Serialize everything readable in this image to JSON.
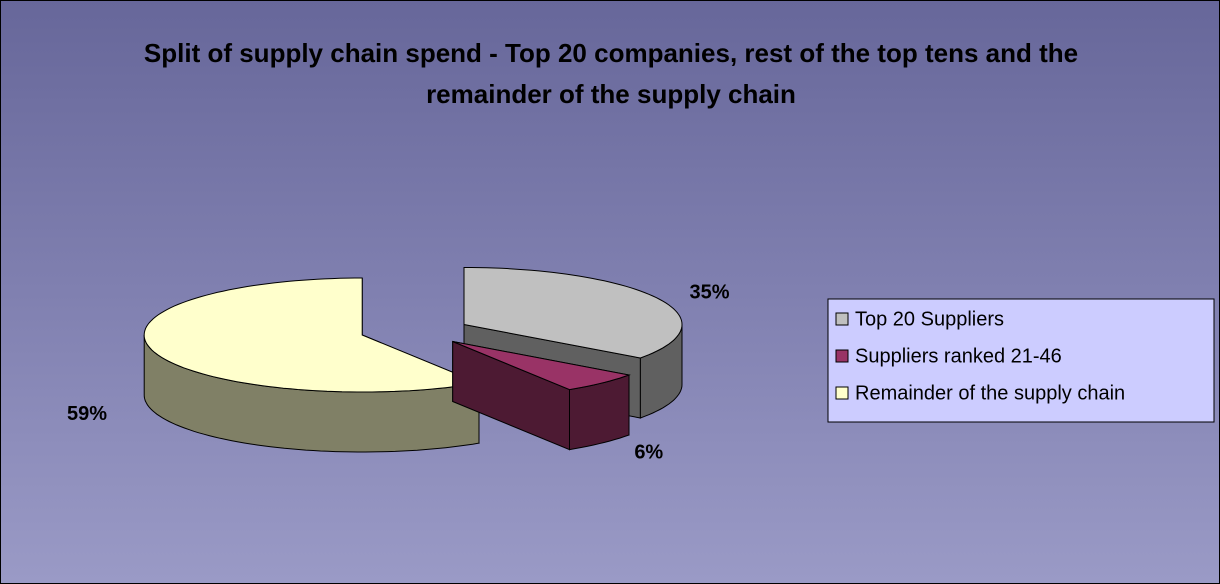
{
  "chart_data": {
    "type": "pie3d",
    "title": "Split of supply chain spend - Top 20 companies, rest of the top tens and the remainder of the supply chain",
    "categories": [
      "Top 20 Suppliers",
      "Suppliers ranked 21-46",
      "Remainder of the supply chain"
    ],
    "values": [
      35,
      6,
      59
    ],
    "value_labels": [
      "35%",
      "6%",
      "59%"
    ],
    "colors": [
      "#c0c0c0",
      "#993366",
      "#ffffcc"
    ],
    "legend": "right"
  }
}
